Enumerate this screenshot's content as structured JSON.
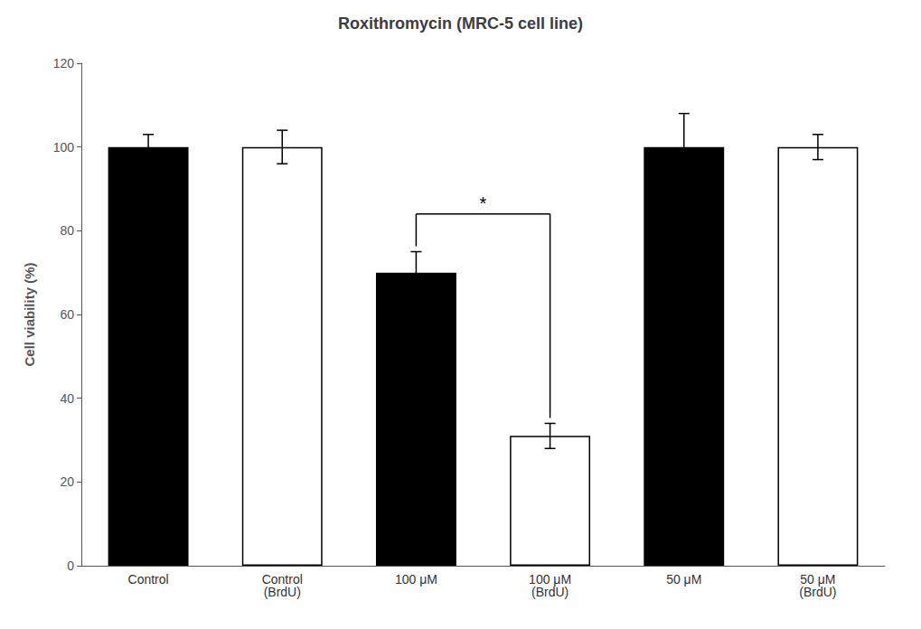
{
  "chart_data": {
    "type": "bar",
    "title": "Roxithromycin (MRC-5 cell line)",
    "ylabel": "Cell viability (%)",
    "categories": [
      "Control",
      "Control\n(BrdU)",
      "100 μM",
      "100 μM\n(BrdU)",
      "50 μM",
      "50 μM\n(BrdU)"
    ],
    "values": [
      100,
      100,
      70,
      31,
      100,
      100
    ],
    "errors": [
      3,
      4,
      5,
      3,
      8,
      3
    ],
    "colors": [
      "#000000",
      "#ffffff",
      "#000000",
      "#ffffff",
      "#000000",
      "#ffffff"
    ],
    "ylim": [
      0,
      120
    ],
    "yticks": [
      0,
      20,
      40,
      60,
      80,
      100,
      120
    ],
    "grid": false,
    "annotations": [
      {
        "text": "*",
        "from": "100 μM",
        "to": "100 μM\n(BrdU)",
        "y": 84
      }
    ]
  }
}
